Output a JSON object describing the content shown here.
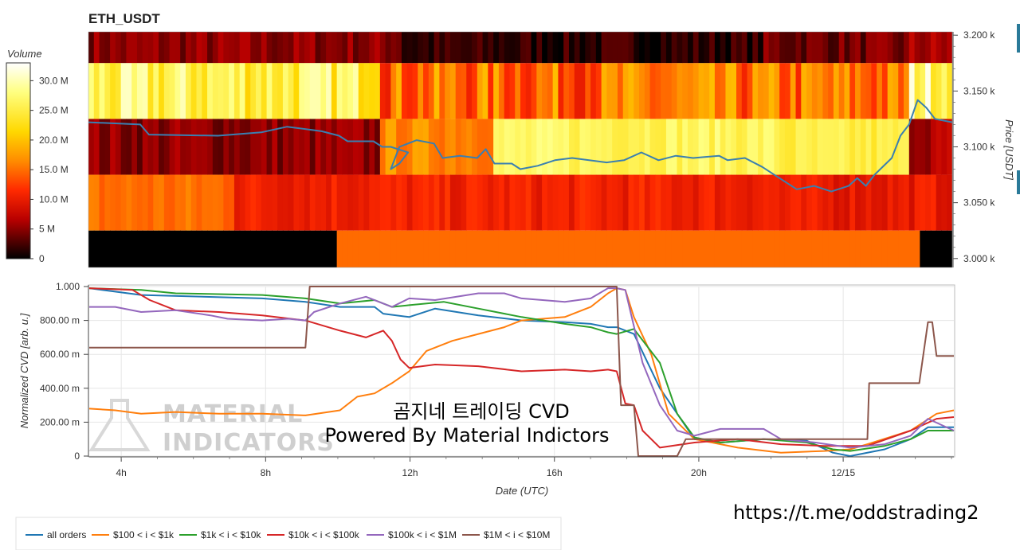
{
  "chart_data": [
    {
      "type": "heatmap",
      "title": "ETH_USDT",
      "ylabel": "Price [USDT]",
      "y_ticks": [
        "3.200 k",
        "3.150 k",
        "3.100 k",
        "3.050 k",
        "3.000 k"
      ],
      "ylim": [
        2992,
        3203
      ],
      "colorbar": {
        "label": "Volume",
        "ticks": [
          "30.0 M",
          "25.0 M",
          "20.0 M",
          "15.0 M",
          "10.0 M",
          "5 M",
          "0"
        ],
        "range": [
          0,
          33
        ],
        "colors": [
          "#000000",
          "#b80000",
          "#ff2a00",
          "#ff8c00",
          "#ffd800",
          "#ffff80",
          "#ffffff"
        ]
      },
      "price_bands": [
        {
          "lo": 3175,
          "hi": 3203,
          "level": 0.15,
          "var": 0.06,
          "x_breaks": [
            [
              0.36,
              0.05
            ],
            [
              0.78,
              0.12
            ],
            [
              0.95,
              0.18
            ]
          ]
        },
        {
          "lo": 3125,
          "hi": 3175,
          "level": 0.78,
          "var": 0.15,
          "x_breaks": [
            [
              0.34,
              0.45
            ],
            [
              0.95,
              0.85
            ],
            [
              1.0,
              0.4
            ]
          ]
        },
        {
          "lo": 3075,
          "hi": 3125,
          "level": 0.15,
          "var": 0.06,
          "x_breaks": [
            [
              0.34,
              0.5
            ],
            [
              0.47,
              0.8
            ],
            [
              0.8,
              0.75
            ],
            [
              0.95,
              0.2
            ]
          ]
        },
        {
          "lo": 3025,
          "hi": 3075,
          "level": 0.45,
          "var": 0.05,
          "x_breaks": [
            [
              0.17,
              0.32
            ],
            [
              0.8,
              0.3
            ],
            [
              1.0,
              0.2
            ]
          ]
        },
        {
          "lo": 2992,
          "hi": 3025,
          "level": 0.0,
          "var": 0.0,
          "x_breaks": [
            [
              0.29,
              0.45
            ],
            [
              0.96,
              0.0
            ]
          ]
        }
      ],
      "price_line": {
        "color": "#3a7fb0",
        "points": [
          [
            0.0,
            3122
          ],
          [
            0.06,
            3120
          ],
          [
            0.07,
            3111
          ],
          [
            0.15,
            3110
          ],
          [
            0.2,
            3113
          ],
          [
            0.23,
            3118
          ],
          [
            0.27,
            3114
          ],
          [
            0.29,
            3110
          ],
          [
            0.3,
            3105
          ],
          [
            0.33,
            3105
          ],
          [
            0.34,
            3100
          ],
          [
            0.35,
            3100
          ],
          [
            0.37,
            3095
          ],
          [
            0.36,
            3085
          ],
          [
            0.35,
            3080
          ],
          [
            0.36,
            3100
          ],
          [
            0.38,
            3106
          ],
          [
            0.4,
            3103
          ],
          [
            0.41,
            3090
          ],
          [
            0.43,
            3092
          ],
          [
            0.45,
            3090
          ],
          [
            0.46,
            3098
          ],
          [
            0.47,
            3085
          ],
          [
            0.49,
            3085
          ],
          [
            0.5,
            3080
          ],
          [
            0.52,
            3083
          ],
          [
            0.54,
            3088
          ],
          [
            0.56,
            3090
          ],
          [
            0.6,
            3086
          ],
          [
            0.62,
            3088
          ],
          [
            0.64,
            3095
          ],
          [
            0.66,
            3088
          ],
          [
            0.68,
            3092
          ],
          [
            0.7,
            3090
          ],
          [
            0.73,
            3092
          ],
          [
            0.74,
            3088
          ],
          [
            0.76,
            3090
          ],
          [
            0.78,
            3082
          ],
          [
            0.8,
            3072
          ],
          [
            0.82,
            3062
          ],
          [
            0.84,
            3065
          ],
          [
            0.86,
            3060
          ],
          [
            0.88,
            3065
          ],
          [
            0.89,
            3072
          ],
          [
            0.9,
            3065
          ],
          [
            0.91,
            3075
          ],
          [
            0.93,
            3090
          ],
          [
            0.94,
            3110
          ],
          [
            0.95,
            3120
          ],
          [
            0.96,
            3142
          ],
          [
            0.97,
            3135
          ],
          [
            0.98,
            3125
          ],
          [
            1.0,
            3122
          ]
        ]
      }
    },
    {
      "type": "line",
      "xlabel": "Date (UTC)",
      "ylabel": "Normalized CVD [arb. u.]",
      "x_ticks": [
        "4h",
        "8h",
        "12h",
        "16h",
        "20h",
        "12/15"
      ],
      "y_ticks": [
        "1.000",
        "800.00 m",
        "600.00 m",
        "400.00 m",
        "200.00 m",
        "0"
      ],
      "ylim": [
        0,
        1
      ],
      "grid": true,
      "legend_position": "bottom-left",
      "series": [
        {
          "name": "all orders",
          "color": "#1f77b4",
          "points": [
            [
              0,
              0.99
            ],
            [
              0.06,
              0.95
            ],
            [
              0.2,
              0.93
            ],
            [
              0.25,
              0.91
            ],
            [
              0.29,
              0.88
            ],
            [
              0.33,
              0.88
            ],
            [
              0.34,
              0.84
            ],
            [
              0.37,
              0.82
            ],
            [
              0.4,
              0.87
            ],
            [
              0.45,
              0.83
            ],
            [
              0.5,
              0.8
            ],
            [
              0.55,
              0.79
            ],
            [
              0.58,
              0.78
            ],
            [
              0.6,
              0.76
            ],
            [
              0.61,
              0.76
            ],
            [
              0.63,
              0.72
            ],
            [
              0.66,
              0.4
            ],
            [
              0.7,
              0.1
            ],
            [
              0.73,
              0.08
            ],
            [
              0.78,
              0.1
            ],
            [
              0.83,
              0.09
            ],
            [
              0.86,
              0.02
            ],
            [
              0.88,
              0.0
            ],
            [
              0.92,
              0.04
            ],
            [
              0.95,
              0.1
            ],
            [
              0.97,
              0.17
            ],
            [
              1.0,
              0.17
            ]
          ]
        },
        {
          "name": "$100 < i < $1k",
          "color": "#ff7f0e",
          "points": [
            [
              0,
              0.28
            ],
            [
              0.03,
              0.27
            ],
            [
              0.06,
              0.25
            ],
            [
              0.1,
              0.26
            ],
            [
              0.15,
              0.25
            ],
            [
              0.2,
              0.25
            ],
            [
              0.25,
              0.24
            ],
            [
              0.29,
              0.27
            ],
            [
              0.31,
              0.35
            ],
            [
              0.33,
              0.37
            ],
            [
              0.35,
              0.43
            ],
            [
              0.37,
              0.5
            ],
            [
              0.39,
              0.62
            ],
            [
              0.42,
              0.68
            ],
            [
              0.45,
              0.72
            ],
            [
              0.48,
              0.76
            ],
            [
              0.5,
              0.8
            ],
            [
              0.55,
              0.82
            ],
            [
              0.58,
              0.88
            ],
            [
              0.6,
              0.96
            ],
            [
              0.61,
              0.99
            ],
            [
              0.62,
              0.98
            ],
            [
              0.63,
              0.82
            ],
            [
              0.65,
              0.6
            ],
            [
              0.67,
              0.25
            ],
            [
              0.7,
              0.1
            ],
            [
              0.75,
              0.05
            ],
            [
              0.8,
              0.02
            ],
            [
              0.85,
              0.03
            ],
            [
              0.88,
              0.04
            ],
            [
              0.9,
              0.07
            ],
            [
              0.95,
              0.15
            ],
            [
              0.98,
              0.25
            ],
            [
              1.0,
              0.27
            ]
          ]
        },
        {
          "name": "$1k < i < $10k",
          "color": "#2ca02c",
          "points": [
            [
              0,
              0.99
            ],
            [
              0.06,
              0.98
            ],
            [
              0.1,
              0.96
            ],
            [
              0.2,
              0.95
            ],
            [
              0.25,
              0.93
            ],
            [
              0.29,
              0.9
            ],
            [
              0.33,
              0.92
            ],
            [
              0.35,
              0.88
            ],
            [
              0.37,
              0.89
            ],
            [
              0.41,
              0.91
            ],
            [
              0.45,
              0.87
            ],
            [
              0.5,
              0.82
            ],
            [
              0.55,
              0.78
            ],
            [
              0.58,
              0.76
            ],
            [
              0.6,
              0.73
            ],
            [
              0.61,
              0.72
            ],
            [
              0.63,
              0.75
            ],
            [
              0.66,
              0.55
            ],
            [
              0.68,
              0.25
            ],
            [
              0.7,
              0.11
            ],
            [
              0.73,
              0.08
            ],
            [
              0.78,
              0.1
            ],
            [
              0.83,
              0.08
            ],
            [
              0.86,
              0.04
            ],
            [
              0.88,
              0.03
            ],
            [
              0.92,
              0.06
            ],
            [
              0.95,
              0.1
            ],
            [
              0.97,
              0.15
            ],
            [
              1.0,
              0.15
            ]
          ]
        },
        {
          "name": "$10k < i < $100k",
          "color": "#d62728",
          "points": [
            [
              0,
              0.99
            ],
            [
              0.05,
              0.98
            ],
            [
              0.07,
              0.92
            ],
            [
              0.1,
              0.86
            ],
            [
              0.15,
              0.85
            ],
            [
              0.2,
              0.83
            ],
            [
              0.25,
              0.8
            ],
            [
              0.29,
              0.74
            ],
            [
              0.32,
              0.7
            ],
            [
              0.34,
              0.74
            ],
            [
              0.35,
              0.68
            ],
            [
              0.36,
              0.57
            ],
            [
              0.37,
              0.52
            ],
            [
              0.4,
              0.54
            ],
            [
              0.45,
              0.53
            ],
            [
              0.5,
              0.5
            ],
            [
              0.55,
              0.51
            ],
            [
              0.58,
              0.5
            ],
            [
              0.6,
              0.51
            ],
            [
              0.61,
              0.5
            ],
            [
              0.62,
              0.31
            ],
            [
              0.63,
              0.3
            ],
            [
              0.64,
              0.15
            ],
            [
              0.66,
              0.05
            ],
            [
              0.7,
              0.08
            ],
            [
              0.75,
              0.1
            ],
            [
              0.8,
              0.07
            ],
            [
              0.85,
              0.06
            ],
            [
              0.9,
              0.06
            ],
            [
              0.95,
              0.15
            ],
            [
              0.98,
              0.22
            ],
            [
              1.0,
              0.23
            ]
          ]
        },
        {
          "name": "$100k < i < $1M",
          "color": "#9467bd",
          "points": [
            [
              0,
              0.88
            ],
            [
              0.03,
              0.88
            ],
            [
              0.06,
              0.85
            ],
            [
              0.1,
              0.86
            ],
            [
              0.14,
              0.83
            ],
            [
              0.16,
              0.81
            ],
            [
              0.2,
              0.8
            ],
            [
              0.23,
              0.81
            ],
            [
              0.25,
              0.8
            ],
            [
              0.26,
              0.85
            ],
            [
              0.29,
              0.9
            ],
            [
              0.32,
              0.94
            ],
            [
              0.35,
              0.88
            ],
            [
              0.37,
              0.93
            ],
            [
              0.4,
              0.92
            ],
            [
              0.45,
              0.96
            ],
            [
              0.48,
              0.96
            ],
            [
              0.5,
              0.93
            ],
            [
              0.55,
              0.91
            ],
            [
              0.58,
              0.93
            ],
            [
              0.6,
              0.99
            ],
            [
              0.61,
              0.99
            ],
            [
              0.62,
              0.98
            ],
            [
              0.64,
              0.55
            ],
            [
              0.66,
              0.3
            ],
            [
              0.68,
              0.15
            ],
            [
              0.7,
              0.12
            ],
            [
              0.73,
              0.16
            ],
            [
              0.78,
              0.16
            ],
            [
              0.8,
              0.1
            ],
            [
              0.84,
              0.08
            ],
            [
              0.88,
              0.05
            ],
            [
              0.92,
              0.07
            ],
            [
              0.95,
              0.12
            ],
            [
              0.97,
              0.22
            ],
            [
              1.0,
              0.15
            ]
          ]
        },
        {
          "name": "$1M < i < $10M",
          "color": "#8c564b",
          "points": [
            [
              0,
              0.64
            ],
            [
              0.1,
              0.64
            ],
            [
              0.2,
              0.64
            ],
            [
              0.25,
              0.64
            ],
            [
              0.255,
              1.0
            ],
            [
              0.3,
              1.0
            ],
            [
              0.4,
              1.0
            ],
            [
              0.5,
              1.0
            ],
            [
              0.61,
              1.0
            ],
            [
              0.615,
              0.3
            ],
            [
              0.63,
              0.3
            ],
            [
              0.635,
              0.0
            ],
            [
              0.68,
              0.0
            ],
            [
              0.69,
              0.1
            ],
            [
              0.75,
              0.1
            ],
            [
              0.8,
              0.1
            ],
            [
              0.9,
              0.1
            ],
            [
              0.902,
              0.43
            ],
            [
              0.93,
              0.43
            ],
            [
              0.96,
              0.43
            ],
            [
              0.97,
              0.79
            ],
            [
              0.975,
              0.79
            ],
            [
              0.98,
              0.59
            ],
            [
              1.0,
              0.59
            ]
          ]
        }
      ]
    }
  ],
  "overlay": {
    "line1": "곰지네 트레이딩 CVD",
    "line2": "Powered By Material Indictors",
    "url": "https://t.me/oddstrading2",
    "watermark_line1": "MATERIAL",
    "watermark_line2": "INDICATORS"
  }
}
